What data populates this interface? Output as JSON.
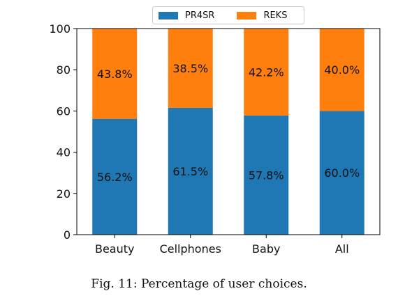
{
  "chart_data": {
    "type": "bar",
    "stacked": true,
    "categories": [
      "Beauty",
      "Cellphones",
      "Baby",
      "All"
    ],
    "series": [
      {
        "name": "PR4SR",
        "color": "#1f77b4",
        "values": [
          56.2,
          61.5,
          57.8,
          60.0
        ],
        "labels": [
          "56.2%",
          "61.5%",
          "57.8%",
          "60.0%"
        ]
      },
      {
        "name": "REKS",
        "color": "#ff7f0e",
        "values": [
          43.8,
          38.5,
          42.2,
          40.0
        ],
        "labels": [
          "43.8%",
          "38.5%",
          "42.2%",
          "40.0%"
        ]
      }
    ],
    "ylim": [
      0,
      100
    ],
    "yticks": [
      "0",
      "20",
      "40",
      "60",
      "80",
      "100"
    ],
    "legend_position": "top-center"
  },
  "caption": "Fig. 11: Percentage of user choices."
}
